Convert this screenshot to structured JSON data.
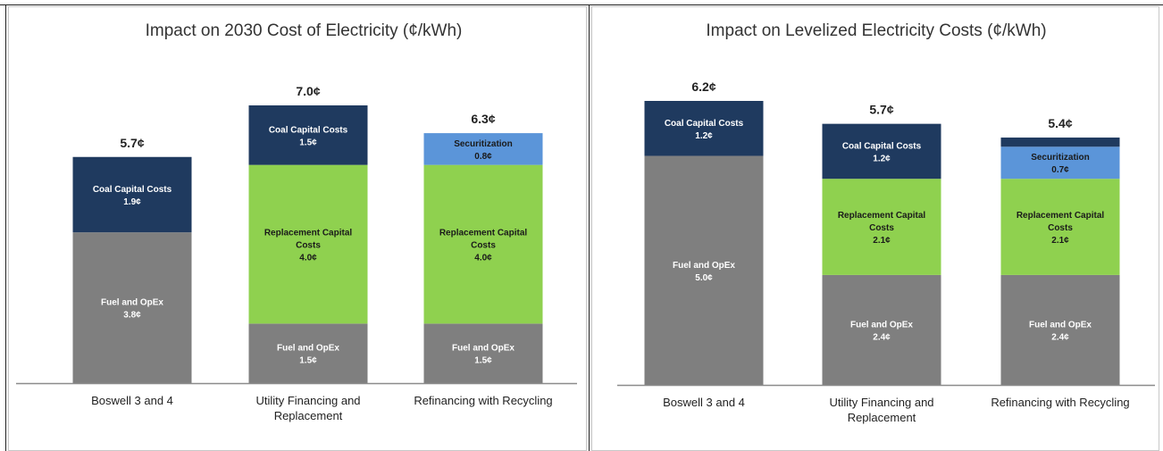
{
  "colors": {
    "Coal Capital Costs": "#1f3a5f",
    "Replacement Capital Costs": "#8fd14f",
    "Securitization": "#5b95d9",
    "Fuel and OpEx": "#7f7f7f",
    "label_dark_bg": "#ffffff",
    "label_light_bg": "#1a1a1a"
  },
  "chart_data": [
    {
      "type": "bar",
      "stacked": true,
      "title": "Impact on 2030 Cost of Electricity (¢/kWh)",
      "categories": [
        "Boswell 3 and 4",
        "Utility Financing and Replacement",
        "Refinancing with Recycling"
      ],
      "category_lines": [
        [
          "Boswell 3 and 4"
        ],
        [
          "Utility Financing and",
          "Replacement"
        ],
        [
          "Refinancing with Recycling"
        ]
      ],
      "ylim": [
        0,
        7.0
      ],
      "totals": [
        "5.7¢",
        "7.0¢",
        "6.3¢"
      ],
      "series": [
        {
          "name": "Fuel and OpEx",
          "values": [
            3.8,
            1.5,
            1.5
          ],
          "labels": [
            "3.8¢",
            "1.5¢",
            "1.5¢"
          ],
          "label_lines": [
            "Fuel and OpEx"
          ]
        },
        {
          "name": "Replacement Capital Costs",
          "values": [
            0,
            4.0,
            4.0
          ],
          "labels": [
            "",
            "4.0¢",
            "4.0¢"
          ],
          "label_lines": [
            "Replacement Capital",
            "Costs"
          ]
        },
        {
          "name": "Securitization",
          "values": [
            0,
            0,
            0.8
          ],
          "labels": [
            "",
            "",
            "0.8¢"
          ],
          "label_lines": [
            "Securitization"
          ]
        },
        {
          "name": "Coal Capital Costs",
          "values": [
            1.9,
            1.5,
            0
          ],
          "labels": [
            "1.9¢",
            "1.5¢",
            ""
          ],
          "label_lines": [
            "Coal Capital Costs"
          ]
        }
      ]
    },
    {
      "type": "bar",
      "stacked": true,
      "title": "Impact on Levelized Electricity Costs (¢/kWh)",
      "categories": [
        "Boswell 3 and 4",
        "Utility Financing and Replacement",
        "Refinancing with Recycling"
      ],
      "category_lines": [
        [
          "Boswell 3 and 4"
        ],
        [
          "Utility Financing and",
          "Replacement"
        ],
        [
          "Refinancing with Recycling"
        ]
      ],
      "ylim": [
        0,
        6.2
      ],
      "totals": [
        "6.2¢",
        "5.7¢",
        "5.4¢"
      ],
      "series": [
        {
          "name": "Fuel and OpEx",
          "values": [
            5.0,
            2.4,
            2.4
          ],
          "labels": [
            "5.0¢",
            "2.4¢",
            "2.4¢"
          ],
          "label_lines": [
            "Fuel and OpEx"
          ]
        },
        {
          "name": "Replacement Capital Costs",
          "values": [
            0,
            2.1,
            2.1
          ],
          "labels": [
            "",
            "2.1¢",
            "2.1¢"
          ],
          "label_lines": [
            "Replacement Capital",
            "Costs"
          ]
        },
        {
          "name": "Securitization",
          "values": [
            0,
            0,
            0.7
          ],
          "labels": [
            "",
            "",
            "0.7¢"
          ],
          "label_lines": [
            "Securitization"
          ]
        },
        {
          "name": "Coal Capital Costs",
          "values": [
            1.2,
            1.2,
            0.2
          ],
          "labels": [
            "1.2¢",
            "1.2¢",
            ""
          ],
          "label_lines": [
            "Coal Capital Costs"
          ]
        }
      ]
    }
  ]
}
